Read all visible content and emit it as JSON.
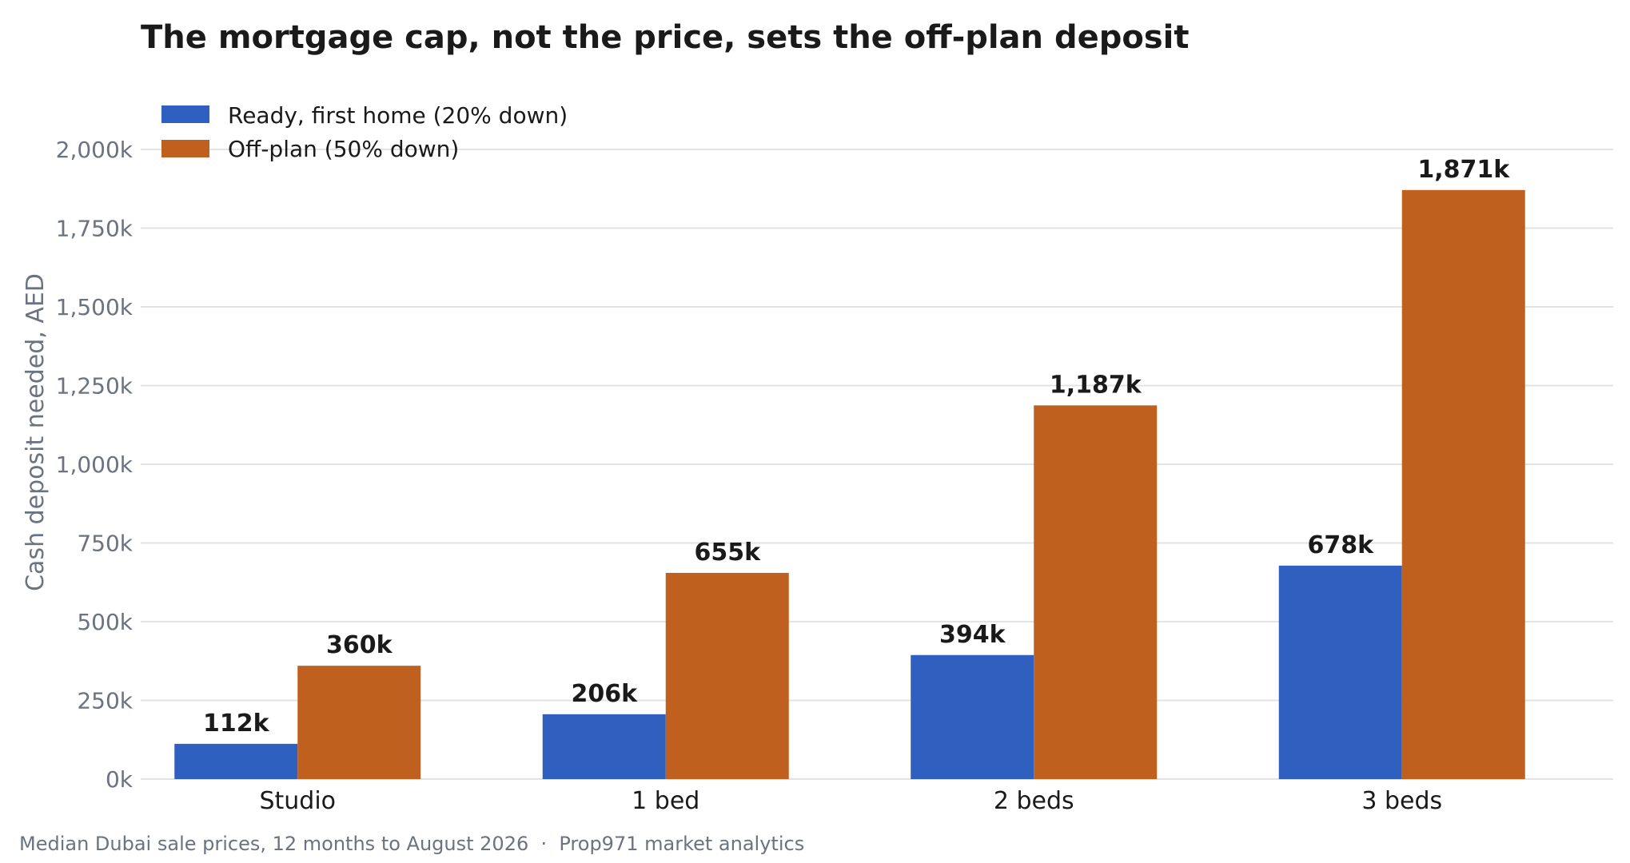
{
  "chart_data": {
    "type": "bar",
    "title": "The mortgage cap, not the price, sets the off-plan deposit",
    "ylabel": "Cash deposit needed, AED",
    "xlabel": "",
    "categories": [
      "Studio",
      "1 bed",
      "2 beds",
      "3 beds"
    ],
    "series": [
      {
        "name": "Ready, first home (20% down)",
        "color": "#2f5fbf",
        "values": [
          112,
          206,
          394,
          678
        ],
        "labels": [
          "112k",
          "206k",
          "394k",
          "678k"
        ]
      },
      {
        "name": "Off-plan (50% down)",
        "color": "#c0601e",
        "values": [
          360,
          655,
          1187,
          1871
        ],
        "labels": [
          "360k",
          "655k",
          "1,187k",
          "1,871k"
        ]
      }
    ],
    "ylim": [
      0,
      2000
    ],
    "yticks": [
      0,
      250,
      500,
      750,
      1000,
      1250,
      1500,
      1750,
      2000
    ],
    "ytick_labels": [
      "0k",
      "250k",
      "500k",
      "750k",
      "1,000k",
      "1,250k",
      "1,500k",
      "1,750k",
      "2,000k"
    ],
    "grid": true,
    "legend_position": "top-left",
    "note": "Median Dubai sale prices, 12 months to August 2026  ·  Prop971 market analytics"
  }
}
